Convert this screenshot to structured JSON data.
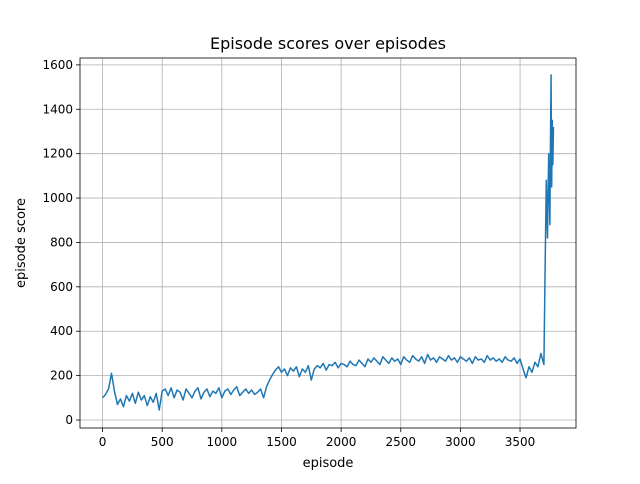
{
  "chart_data": {
    "type": "line",
    "title": "Episode scores over episodes",
    "xlabel": "episode",
    "ylabel": "episode score",
    "x": [
      0,
      25,
      50,
      75,
      100,
      125,
      150,
      175,
      200,
      225,
      250,
      275,
      300,
      325,
      350,
      375,
      400,
      425,
      450,
      475,
      500,
      525,
      550,
      575,
      600,
      625,
      650,
      675,
      700,
      725,
      750,
      775,
      800,
      825,
      850,
      875,
      900,
      925,
      950,
      975,
      1000,
      1025,
      1050,
      1075,
      1100,
      1125,
      1150,
      1175,
      1200,
      1225,
      1250,
      1275,
      1300,
      1325,
      1350,
      1375,
      1400,
      1425,
      1450,
      1475,
      1500,
      1525,
      1550,
      1575,
      1600,
      1625,
      1650,
      1675,
      1700,
      1725,
      1750,
      1775,
      1800,
      1825,
      1850,
      1875,
      1900,
      1925,
      1950,
      1975,
      2000,
      2025,
      2050,
      2075,
      2100,
      2125,
      2150,
      2175,
      2200,
      2225,
      2250,
      2275,
      2300,
      2325,
      2350,
      2375,
      2400,
      2425,
      2450,
      2475,
      2500,
      2525,
      2550,
      2575,
      2600,
      2625,
      2650,
      2675,
      2700,
      2725,
      2750,
      2775,
      2800,
      2825,
      2850,
      2875,
      2900,
      2925,
      2950,
      2975,
      3000,
      3025,
      3050,
      3075,
      3100,
      3125,
      3150,
      3175,
      3200,
      3225,
      3250,
      3275,
      3300,
      3325,
      3350,
      3375,
      3400,
      3425,
      3450,
      3475,
      3500,
      3525,
      3550,
      3575,
      3600,
      3625,
      3650,
      3675,
      3700,
      3710,
      3720,
      3730,
      3740,
      3750,
      3755,
      3760,
      3765,
      3770,
      3775,
      3780
    ],
    "values": [
      100,
      115,
      140,
      210,
      130,
      70,
      95,
      60,
      110,
      85,
      120,
      75,
      125,
      90,
      110,
      65,
      105,
      80,
      120,
      45,
      130,
      140,
      110,
      145,
      100,
      135,
      125,
      90,
      140,
      120,
      100,
      130,
      145,
      95,
      125,
      140,
      105,
      130,
      120,
      145,
      100,
      130,
      140,
      115,
      135,
      150,
      110,
      125,
      140,
      120,
      135,
      115,
      125,
      140,
      100,
      150,
      180,
      205,
      225,
      240,
      215,
      230,
      200,
      235,
      220,
      240,
      195,
      230,
      215,
      245,
      180,
      230,
      245,
      235,
      255,
      225,
      250,
      245,
      260,
      235,
      255,
      250,
      240,
      265,
      250,
      245,
      270,
      255,
      240,
      275,
      260,
      280,
      265,
      250,
      285,
      270,
      255,
      280,
      265,
      275,
      250,
      285,
      270,
      260,
      290,
      275,
      265,
      285,
      255,
      295,
      270,
      280,
      260,
      285,
      275,
      265,
      290,
      270,
      280,
      260,
      285,
      275,
      265,
      280,
      255,
      285,
      270,
      275,
      260,
      290,
      270,
      280,
      265,
      275,
      260,
      285,
      270,
      265,
      280,
      255,
      275,
      230,
      190,
      240,
      215,
      260,
      240,
      300,
      250,
      680,
      1080,
      820,
      1200,
      880,
      1250,
      1555,
      1050,
      1350,
      1150,
      1320
    ],
    "color": "#1f77b4",
    "xlim": [
      -189,
      3969
    ],
    "ylim": [
      -36,
      1631
    ],
    "xticks": [
      0,
      500,
      1000,
      1500,
      2000,
      2500,
      3000,
      3500
    ],
    "yticks": [
      0,
      200,
      400,
      600,
      800,
      1000,
      1200,
      1400,
      1600
    ],
    "grid": true
  }
}
